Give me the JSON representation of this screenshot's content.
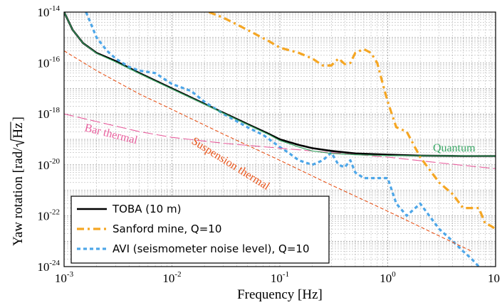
{
  "chart_data": {
    "type": "line",
    "xlabel": "Frequency [Hz]",
    "ylabel_prefix": "Yaw rotation [rad/",
    "ylabel_radicand": "Hz",
    "ylabel_suffix": "]",
    "x_scale": "log",
    "y_scale": "log",
    "xlim": [
      0.001,
      10
    ],
    "ylim": [
      1e-24,
      1e-14
    ],
    "grid": true,
    "legend_position": "lower-left",
    "x_ticks": [
      {
        "base": "10",
        "exp": "-3",
        "value": 0.001
      },
      {
        "base": "10",
        "exp": "-2",
        "value": 0.01
      },
      {
        "base": "10",
        "exp": "-1",
        "value": 0.1
      },
      {
        "base": "10",
        "exp": "0",
        "value": 1
      },
      {
        "base": "10",
        "exp": "",
        "value": 10
      }
    ],
    "y_ticks": [
      {
        "base": "10",
        "exp": "-14",
        "value": 1e-14
      },
      {
        "base": "10",
        "exp": "-16",
        "value": 1e-16
      },
      {
        "base": "10",
        "exp": "-18",
        "value": 1e-18
      },
      {
        "base": "10",
        "exp": "-20",
        "value": 1e-20
      },
      {
        "base": "10",
        "exp": "-22",
        "value": 1e-22
      },
      {
        "base": "10",
        "exp": "-24",
        "value": 1e-24
      }
    ],
    "series": [
      {
        "name": "TOBA (10 m)",
        "color": "#000000",
        "style": "solid",
        "points": [
          [
            0.001,
            1e-14
          ],
          [
            0.0012,
            2e-15
          ],
          [
            0.0015,
            6e-16
          ],
          [
            0.002,
            2.5e-16
          ],
          [
            0.003,
            1.2e-16
          ],
          [
            0.005,
            4e-17
          ],
          [
            0.01,
            1e-17
          ],
          [
            0.02,
            2.5e-18
          ],
          [
            0.05,
            4e-19
          ],
          [
            0.08,
            1.6e-19
          ],
          [
            0.1,
            1e-19
          ],
          [
            0.15,
            6e-20
          ],
          [
            0.2,
            4.5e-20
          ],
          [
            0.3,
            3.5e-20
          ],
          [
            0.5,
            2.8e-20
          ],
          [
            1,
            2.5e-20
          ],
          [
            2,
            2.3e-20
          ],
          [
            5,
            2.2e-20
          ],
          [
            10,
            2.2e-20
          ]
        ]
      },
      {
        "name": "Sanford mine, Q=10",
        "color": "#f5a623",
        "style": "dashdot",
        "points": [
          [
            0.022,
            1e-14
          ],
          [
            0.03,
            6e-15
          ],
          [
            0.05,
            2e-15
          ],
          [
            0.08,
            7e-16
          ],
          [
            0.1,
            4e-16
          ],
          [
            0.15,
            2.5e-16
          ],
          [
            0.2,
            1.5e-16
          ],
          [
            0.25,
            8e-17
          ],
          [
            0.3,
            8e-17
          ],
          [
            0.35,
            1.5e-16
          ],
          [
            0.4,
            9e-17
          ],
          [
            0.45,
            1e-16
          ],
          [
            0.5,
            2.5e-16
          ],
          [
            0.6,
            3.5e-16
          ],
          [
            0.7,
            2.5e-16
          ],
          [
            0.8,
            1e-16
          ],
          [
            0.9,
            1.5e-17
          ],
          [
            1,
            3e-18
          ],
          [
            1.2,
            3e-19
          ],
          [
            1.5,
            2e-19
          ],
          [
            2,
            2e-20
          ],
          [
            3,
            2e-21
          ],
          [
            4,
            7e-22
          ],
          [
            5,
            2e-22
          ],
          [
            6,
            2e-22
          ],
          [
            7,
            2e-22
          ],
          [
            8,
            5e-23
          ],
          [
            9,
            4e-23
          ],
          [
            10,
            3e-23
          ]
        ]
      },
      {
        "name": "AVI (seismometer noise level), Q=10",
        "color": "#4da6e8",
        "style": "dotted",
        "points": [
          [
            0.0016,
            1e-14
          ],
          [
            0.002,
            1e-15
          ],
          [
            0.0025,
            3e-16
          ],
          [
            0.003,
            1.5e-16
          ],
          [
            0.004,
            7e-17
          ],
          [
            0.005,
            5e-17
          ],
          [
            0.007,
            4e-17
          ],
          [
            0.01,
            1.5e-17
          ],
          [
            0.015,
            8e-18
          ],
          [
            0.02,
            3e-18
          ],
          [
            0.03,
            1e-18
          ],
          [
            0.05,
            3e-19
          ],
          [
            0.07,
            1.5e-19
          ],
          [
            0.1,
            5e-20
          ],
          [
            0.12,
            3e-20
          ],
          [
            0.15,
            1.5e-20
          ],
          [
            0.2,
            1e-20
          ],
          [
            0.25,
            1.5e-20
          ],
          [
            0.3,
            3e-20
          ],
          [
            0.35,
            1e-20
          ],
          [
            0.4,
            8e-21
          ],
          [
            0.45,
            1.5e-20
          ],
          [
            0.5,
            5e-21
          ],
          [
            0.6,
            3e-21
          ],
          [
            0.8,
            3e-21
          ],
          [
            1,
            3e-21
          ],
          [
            1.2,
            3e-22
          ],
          [
            1.5,
            1e-22
          ],
          [
            2,
            3e-22
          ],
          [
            3,
            3e-23
          ],
          [
            4,
            1e-23
          ],
          [
            5,
            4e-24
          ],
          [
            6,
            2e-24
          ],
          [
            7,
            1e-24
          ]
        ]
      },
      {
        "name": "",
        "color": "#e8541a",
        "style": "dashed-thin",
        "points": [
          [
            0.001,
            3e-16
          ],
          [
            0.002,
            5e-17
          ],
          [
            0.005,
            6e-18
          ],
          [
            0.01,
            1.5e-18
          ],
          [
            0.03,
            1.6e-19
          ],
          [
            0.1,
            1.5e-20
          ],
          [
            0.3,
            1.6e-21
          ],
          [
            1,
            1.5e-22
          ],
          [
            3,
            1.6e-23
          ],
          [
            6,
            4e-24
          ]
        ]
      },
      {
        "name": "",
        "color": "#e8609e",
        "style": "longdash-thin",
        "points": [
          [
            0.001,
            1e-18
          ],
          [
            0.002,
            5e-19
          ],
          [
            0.005,
            2e-19
          ],
          [
            0.01,
            1.2e-19
          ],
          [
            0.03,
            7e-20
          ],
          [
            0.1,
            4.5e-20
          ],
          [
            0.3,
            3e-20
          ],
          [
            1,
            2e-20
          ],
          [
            3,
            1.2e-20
          ],
          [
            10,
            7e-21
          ]
        ]
      },
      {
        "name": "",
        "color": "#3aa866",
        "style": "solid-thin",
        "points": [
          [
            0.001,
            1e-14
          ],
          [
            0.0012,
            2e-15
          ],
          [
            0.0015,
            6e-16
          ],
          [
            0.002,
            2.4e-16
          ],
          [
            0.003,
            1.1e-16
          ],
          [
            0.005,
            3.8e-17
          ],
          [
            0.01,
            9.5e-18
          ],
          [
            0.02,
            2.4e-18
          ],
          [
            0.05,
            3.8e-19
          ],
          [
            0.08,
            1.5e-19
          ],
          [
            0.1,
            9e-20
          ],
          [
            0.15,
            5e-20
          ],
          [
            0.2,
            3.5e-20
          ],
          [
            0.3,
            2.8e-20
          ],
          [
            0.5,
            2.5e-20
          ],
          [
            1,
            2.3e-20
          ],
          [
            10,
            2.2e-20
          ]
        ]
      }
    ],
    "annotations": [
      {
        "text": "Quantum",
        "color": "#3aa866"
      },
      {
        "text": "Bar thermal",
        "color": "#e8609e"
      },
      {
        "text": "Suspension thermal",
        "color": "#e8541a"
      }
    ]
  }
}
